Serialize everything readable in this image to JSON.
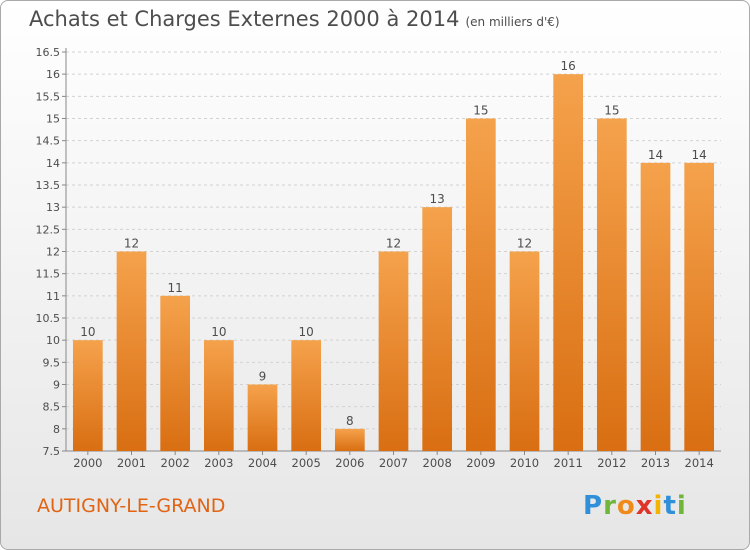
{
  "header": {
    "title": "Achats et Charges Externes 2000 à 2014",
    "unit": "(en milliers d'€)"
  },
  "footer": {
    "commune": "AUTIGNY-LE-GRAND",
    "brand": "Proxiti"
  },
  "colors": {
    "bar_top": "#f5a24c",
    "bar_bottom": "#d96e12",
    "text": "#4d4d4d",
    "commune": "#e06414"
  },
  "chart_data": {
    "type": "bar",
    "categories": [
      "2000",
      "2001",
      "2002",
      "2003",
      "2004",
      "2005",
      "2006",
      "2007",
      "2008",
      "2009",
      "2010",
      "2011",
      "2012",
      "2013",
      "2014"
    ],
    "values": [
      10,
      12,
      11,
      10,
      9,
      10,
      8,
      12,
      13,
      15,
      12,
      16,
      15,
      14,
      14
    ],
    "labels": [
      "10",
      "12",
      "11",
      "10",
      "9",
      "10",
      "8",
      "12",
      "13",
      "15",
      "12",
      "16",
      "15",
      "14",
      "14"
    ],
    "ylim": [
      7.5,
      16.5
    ],
    "yticks": [
      "7.5",
      "8",
      "8.5",
      "9",
      "9.5",
      "10",
      "10.5",
      "11",
      "11.5",
      "12",
      "12.5",
      "13",
      "13.5",
      "14",
      "14.5",
      "15",
      "15.5",
      "16",
      "16.5"
    ],
    "grid": true
  }
}
